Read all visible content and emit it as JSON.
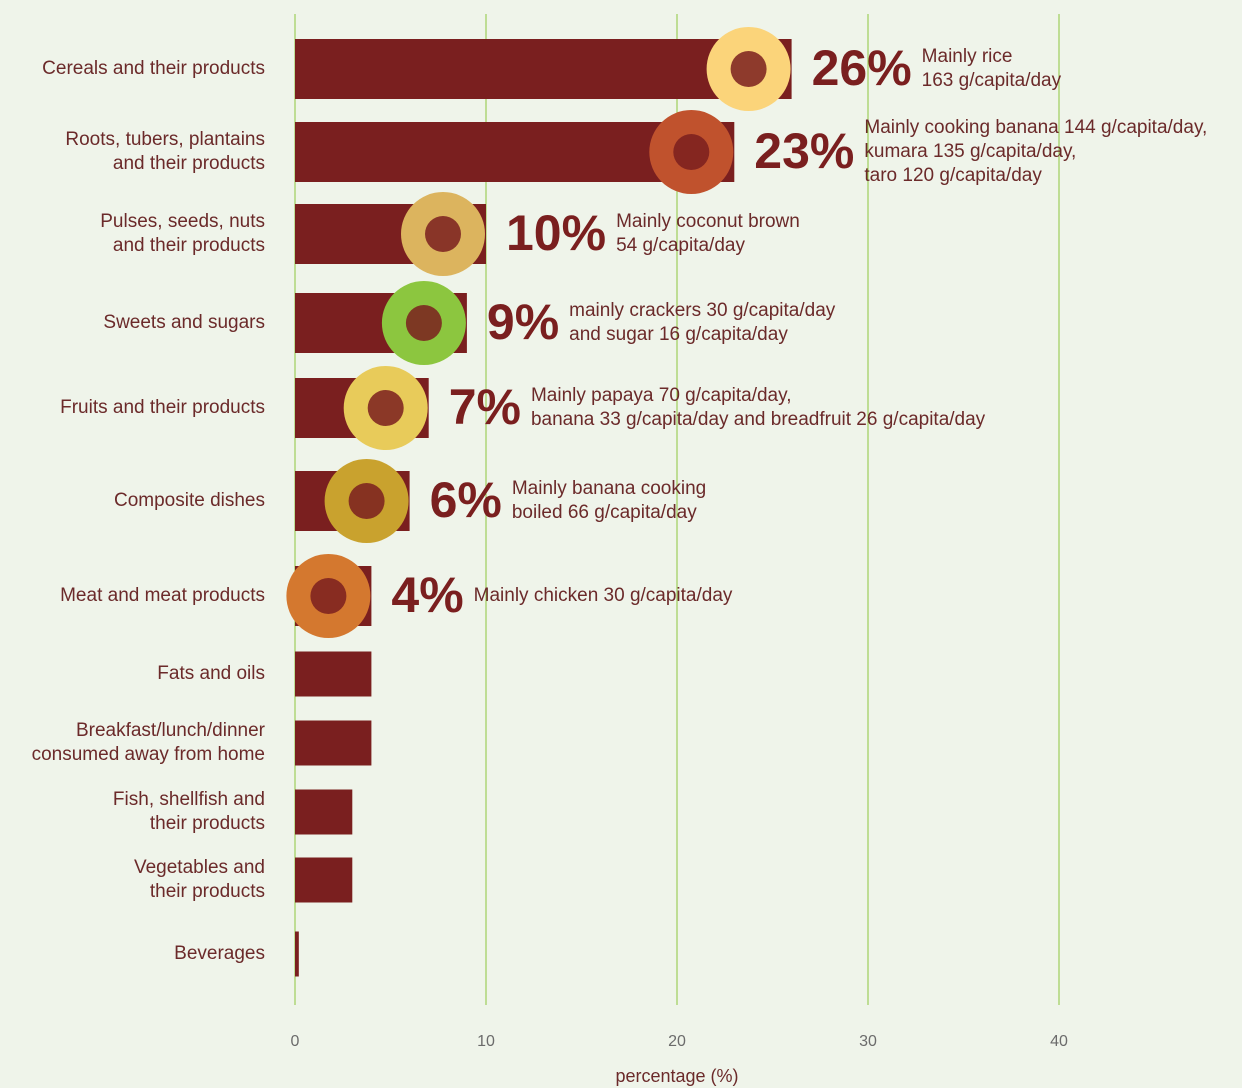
{
  "chart_data": {
    "type": "bar",
    "orientation": "horizontal",
    "categories": [
      "Cereals and their products",
      "Roots, tubers, plantains\nand their products",
      "Pulses, seeds, nuts\nand their products",
      "Sweets and sugars",
      "Fruits and their products",
      "Composite dishes",
      "Meat and meat products",
      "Fats and oils",
      "Breakfast/lunch/dinner\nconsumed away from home",
      "Fish, shellfish and\ntheir products",
      "Vegetables and\ntheir products",
      "Beverages"
    ],
    "values": [
      26,
      23,
      10,
      9,
      7,
      6,
      4,
      4,
      4,
      3,
      3,
      0.2
    ],
    "value_labels": [
      "26%",
      "23%",
      "10%",
      "9%",
      "7%",
      "6%",
      "4%",
      null,
      null,
      null,
      null,
      null
    ],
    "notes": [
      "Mainly rice\n163 g/capita/day",
      "Mainly cooking banana 144 g/capita/day,\nkumara 135 g/capita/day,\ntaro 120 g/capita/day",
      "Mainly coconut brown\n54 g/capita/day",
      "mainly crackers 30 g/capita/day\nand sugar 16 g/capita/day",
      "Mainly papaya 70 g/capita/day,\nbanana 33 g/capita/day and breadfruit 26 g/capita/day",
      "Mainly banana cooking\nboiled 66 g/capita/day",
      "Mainly chicken 30 g/capita/day",
      null,
      null,
      null,
      null,
      null
    ],
    "color": "#7a1f1f",
    "x_label": "percentage (%)",
    "xlim": [
      0,
      40
    ],
    "xticks": [
      0,
      10,
      20,
      30,
      40
    ],
    "grid": true
  }
}
